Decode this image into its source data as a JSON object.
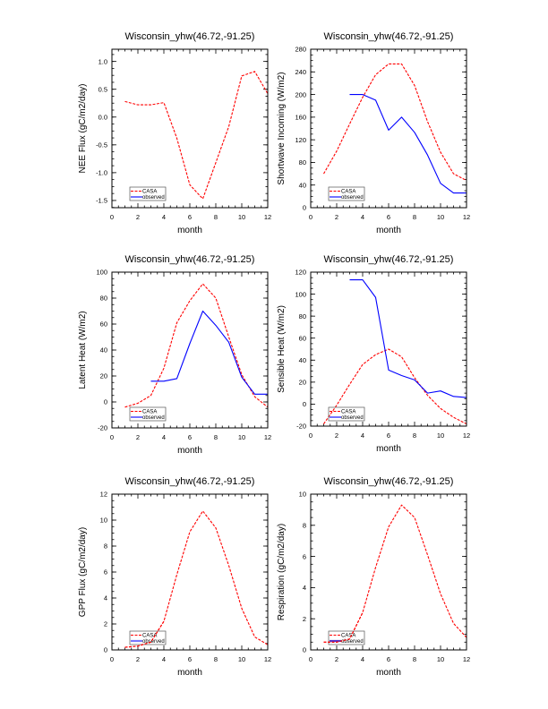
{
  "chart_data": [
    {
      "type": "line",
      "title": "Wisconsin_yhw(46.72,-91.25)",
      "xlabel": "month",
      "ylabel": "NEE Flux (gC/m2/day)",
      "xlim": [
        0,
        12
      ],
      "ylim": [
        -1.63,
        1.22
      ],
      "xticks": [
        0,
        2,
        4,
        6,
        8,
        10,
        12
      ],
      "xtick_labels": [
        "0",
        "2",
        "4",
        "6",
        "8",
        "10",
        "12"
      ],
      "yticks": [
        -1.5,
        -1.0,
        -0.5,
        0.0,
        0.5,
        1.0
      ],
      "ytick_labels": [
        "-1.5",
        "-1.0",
        "-0.5",
        "0.0",
        "0.5",
        "1.0"
      ],
      "legend": [
        "CASA",
        "observed"
      ],
      "legend_position": "bottom-left",
      "series": [
        {
          "name": "CASA",
          "color": "#ff0000",
          "style": "dashed",
          "x": [
            1,
            2,
            3,
            4,
            5,
            6,
            7,
            8,
            9,
            10,
            11,
            12
          ],
          "values": [
            0.28,
            0.22,
            0.22,
            0.26,
            -0.38,
            -1.22,
            -1.47,
            -0.82,
            -0.17,
            0.74,
            0.82,
            0.42
          ]
        },
        {
          "name": "observed",
          "color": "#0000ff",
          "style": "solid",
          "x": [],
          "values": []
        }
      ]
    },
    {
      "type": "line",
      "title": "Wisconsin_yhw(46.72,-91.25)",
      "xlabel": "month",
      "ylabel": "Shortwave Incoming (W/m2)",
      "xlim": [
        0,
        12
      ],
      "ylim": [
        0,
        280
      ],
      "xticks": [
        0,
        2,
        4,
        6,
        8,
        10,
        12
      ],
      "xtick_labels": [
        "0",
        "2",
        "4",
        "6",
        "8",
        "10",
        "12"
      ],
      "yticks": [
        0,
        40,
        80,
        120,
        160,
        200,
        240,
        280
      ],
      "ytick_labels": [
        "0",
        "40",
        "80",
        "120",
        "160",
        "200",
        "240",
        "280"
      ],
      "legend": [
        "CASA",
        "observed"
      ],
      "legend_position": "bottom-left",
      "series": [
        {
          "name": "CASA",
          "color": "#ff0000",
          "style": "dashed",
          "x": [
            1,
            2,
            3,
            4,
            5,
            6,
            7,
            8,
            9,
            10,
            11,
            12
          ],
          "values": [
            60,
            100,
            148,
            195,
            235,
            254,
            254,
            216,
            152,
            98,
            60,
            48
          ]
        },
        {
          "name": "observed",
          "color": "#0000ff",
          "style": "solid",
          "x": [
            3,
            4,
            5,
            6,
            7,
            8,
            9,
            10,
            11,
            12
          ],
          "values": [
            200,
            200,
            190,
            137,
            160,
            133,
            93,
            43,
            26,
            26
          ]
        }
      ]
    },
    {
      "type": "line",
      "title": "Wisconsin_yhw(46.72,-91.25)",
      "xlabel": "month",
      "ylabel": "Latent Heat (W/m2)",
      "xlim": [
        0,
        12
      ],
      "ylim": [
        -20,
        100
      ],
      "xticks": [
        0,
        2,
        4,
        6,
        8,
        10,
        12
      ],
      "xtick_labels": [
        "0",
        "2",
        "4",
        "6",
        "8",
        "10",
        "12"
      ],
      "yticks": [
        -20,
        0,
        20,
        40,
        60,
        80,
        100
      ],
      "ytick_labels": [
        "-20",
        "0",
        "20",
        "40",
        "60",
        "80",
        "100"
      ],
      "legend": [
        "CASA",
        "observed"
      ],
      "legend_position": "bottom-left",
      "series": [
        {
          "name": "CASA",
          "color": "#ff0000",
          "style": "dashed",
          "x": [
            1,
            2,
            3,
            4,
            5,
            6,
            7,
            8,
            9,
            10,
            11,
            12
          ],
          "values": [
            -4,
            -1,
            5,
            26,
            61,
            78,
            91,
            80,
            50,
            21,
            4,
            -4
          ]
        },
        {
          "name": "observed",
          "color": "#0000ff",
          "style": "solid",
          "x": [
            3,
            4,
            5,
            6,
            7,
            8,
            9,
            10,
            11,
            12
          ],
          "values": [
            16,
            16,
            18,
            45,
            70,
            59,
            46,
            19,
            6,
            6
          ]
        }
      ]
    },
    {
      "type": "line",
      "title": "Wisconsin_yhw(46.72,-91.25)",
      "xlabel": "month",
      "ylabel": "Sensible Heat (W/m2)",
      "xlim": [
        0,
        12
      ],
      "ylim": [
        -20,
        120
      ],
      "xticks": [
        0,
        2,
        4,
        6,
        8,
        10,
        12
      ],
      "xtick_labels": [
        "0",
        "2",
        "4",
        "6",
        "8",
        "10",
        "12"
      ],
      "yticks": [
        -20,
        0,
        20,
        40,
        60,
        80,
        100,
        120
      ],
      "ytick_labels": [
        "-20",
        "0",
        "20",
        "40",
        "60",
        "80",
        "100",
        "120"
      ],
      "legend": [
        "CASA",
        "observed"
      ],
      "legend_position": "bottom-left",
      "series": [
        {
          "name": "CASA",
          "color": "#ff0000",
          "style": "dashed",
          "x": [
            1,
            2,
            3,
            4,
            5,
            6,
            7,
            8,
            9,
            10,
            11,
            12
          ],
          "values": [
            -18,
            -1,
            18,
            36,
            45,
            50,
            43,
            24,
            8,
            -4,
            -12,
            -18
          ]
        },
        {
          "name": "observed",
          "color": "#0000ff",
          "style": "solid",
          "x": [
            3,
            4,
            5,
            6,
            7,
            8,
            9,
            10,
            11,
            12
          ],
          "values": [
            113,
            113,
            97,
            31,
            26,
            22,
            10,
            12,
            7,
            6
          ]
        }
      ]
    },
    {
      "type": "line",
      "title": "Wisconsin_yhw(46.72,-91.25)",
      "xlabel": "month",
      "ylabel": "GPP Flux (gC/m2/day)",
      "xlim": [
        0,
        12
      ],
      "ylim": [
        0,
        12
      ],
      "xticks": [
        0,
        2,
        4,
        6,
        8,
        10,
        12
      ],
      "xtick_labels": [
        "0",
        "2",
        "4",
        "6",
        "8",
        "10",
        "12"
      ],
      "yticks": [
        0,
        2,
        4,
        6,
        8,
        10,
        12
      ],
      "ytick_labels": [
        "0",
        "2",
        "4",
        "6",
        "8",
        "10",
        "12"
      ],
      "legend": [
        "CASA",
        "observed"
      ],
      "legend_position": "bottom-left",
      "series": [
        {
          "name": "CASA",
          "color": "#ff0000",
          "style": "dashed",
          "x": [
            1,
            2,
            3,
            4,
            5,
            6,
            7,
            8,
            9,
            10,
            11,
            12
          ],
          "values": [
            0.2,
            0.3,
            0.6,
            2.2,
            5.8,
            9.1,
            10.7,
            9.4,
            6.5,
            3.2,
            1.0,
            0.4
          ]
        },
        {
          "name": "observed",
          "color": "#7777ff",
          "style": "solid",
          "x": [],
          "values": []
        }
      ]
    },
    {
      "type": "line",
      "title": "Wisconsin_yhw(46.72,-91.25)",
      "xlabel": "month",
      "ylabel": "Respiration (gC/m2/day)",
      "xlim": [
        0,
        12
      ],
      "ylim": [
        0,
        10
      ],
      "xticks": [
        0,
        2,
        4,
        6,
        8,
        10,
        12
      ],
      "xtick_labels": [
        "0",
        "2",
        "4",
        "6",
        "8",
        "10",
        "12"
      ],
      "yticks": [
        0,
        2,
        4,
        6,
        8,
        10
      ],
      "ytick_labels": [
        "0",
        "2",
        "4",
        "6",
        "8",
        "10"
      ],
      "legend": [
        "CASA",
        "observed"
      ],
      "legend_position": "bottom-left",
      "series": [
        {
          "name": "CASA",
          "color": "#ff0000",
          "style": "dashed",
          "x": [
            1,
            2,
            3,
            4,
            5,
            6,
            7,
            8,
            9,
            10,
            11,
            12
          ],
          "values": [
            0.5,
            0.5,
            0.7,
            2.4,
            5.3,
            7.9,
            9.3,
            8.5,
            6.1,
            3.6,
            1.7,
            0.8
          ]
        },
        {
          "name": "observed",
          "color": "#5533cc",
          "style": "solid",
          "x": [],
          "values": []
        }
      ]
    }
  ]
}
